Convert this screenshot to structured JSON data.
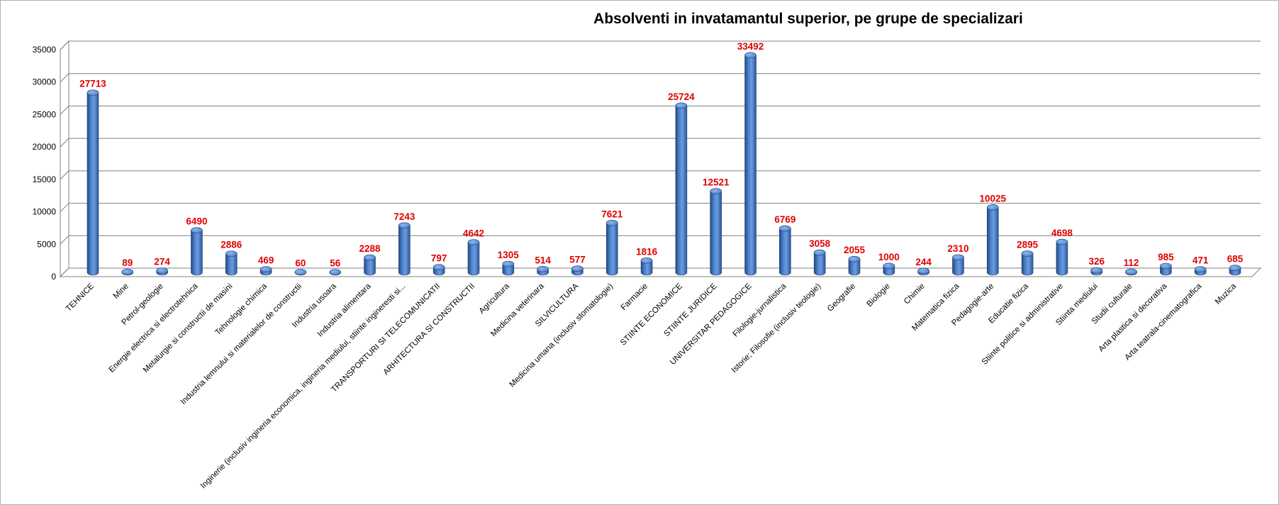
{
  "chart_data": {
    "type": "bar",
    "title": "Absolventi in invatamantul superior, pe grupe de specializari",
    "xlabel": "",
    "ylabel": "",
    "ylim": [
      0,
      35000
    ],
    "yticks": [
      0,
      5000,
      10000,
      15000,
      20000,
      25000,
      30000,
      35000
    ],
    "grid": true,
    "legend": "none",
    "bar_color": "#3f74c0",
    "label_color": "#e00000",
    "categories": [
      "TEHNICE",
      "Mine",
      "Petrol-geologie",
      "Energie electrica si electrotehnica",
      "Metalurgie si constructii de masini",
      "Tehnologie chimica",
      "Industria lemnului si materialelor de constructii",
      "Industria usoara",
      "Industria alimentara",
      "Inginerie (inclusiv ingineria economica, ingineria mediului, stiinte ingineresti si...",
      "TRANSPORTURI SI TELECOMUNICATII",
      "ARHITECTURA SI CONSTRUCTII",
      "Agricultura",
      "Medicina veterinara",
      "SILVICULTURA",
      "Medicina umana (inclusiv stomatologie)",
      "Farmacie",
      "STIINTE ECONOMICE",
      "STIINTE JURIDICE",
      "UNIVERSITAR PEDAGOGICE",
      "Filologie-jurnalistica",
      "Istorie; Filosofie (inclusiv teologie)",
      "Geografie",
      "Biologie",
      "Chimie",
      "Matematica fizica",
      "Pedagogie-arte",
      "Educatie fizica",
      "Stiinte politice si administrative",
      "Stiinta mediului",
      "Studii culturale",
      "Arta plastica si decorativa",
      "Arta teatrala-cinematografica",
      "Muzica"
    ],
    "values": [
      27713,
      89,
      274,
      6490,
      2886,
      469,
      60,
      56,
      2288,
      7243,
      797,
      4642,
      1305,
      514,
      577,
      7621,
      1816,
      25724,
      12521,
      33492,
      6769,
      3058,
      2055,
      1000,
      244,
      2310,
      10025,
      2895,
      4698,
      326,
      112,
      985,
      471,
      685
    ]
  }
}
